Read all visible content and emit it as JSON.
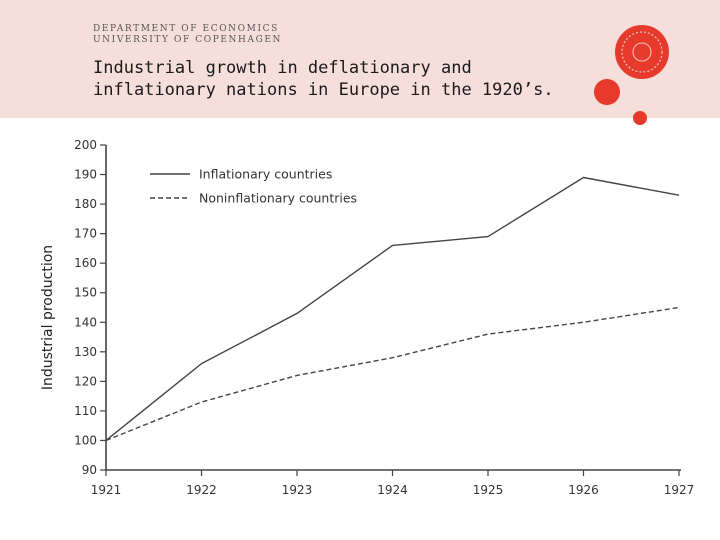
{
  "header": {
    "dept_line1": "DEPARTMENT OF ECONOMICS",
    "dept_line2": "UNIVERSITY OF COPENHAGEN",
    "title_line1": "Industrial growth in deflationary and",
    "title_line2": "inflationary nations in Europe in the 1920’s."
  },
  "colors": {
    "header_band": "#f6dedb",
    "logo_red": "#e53a2c",
    "line": "#444444"
  },
  "chart_data": {
    "type": "line",
    "ylabel": "Industrial production",
    "xlabel": "",
    "categories": [
      "1921",
      "1922",
      "1923",
      "1924",
      "1925",
      "1926",
      "1927"
    ],
    "ylim": [
      90,
      200
    ],
    "yticks": [
      200,
      190,
      180,
      170,
      160,
      150,
      140,
      130,
      120,
      110,
      100,
      90
    ],
    "series": [
      {
        "name": "Inflationary countries",
        "style": "solid",
        "values": [
          100,
          126,
          143,
          166,
          169,
          189,
          183
        ]
      },
      {
        "name": "Noninflationary countries",
        "style": "dashed",
        "values": [
          100,
          113,
          122,
          128,
          136,
          140,
          145
        ]
      }
    ],
    "legend": "top-left",
    "grid": false
  }
}
